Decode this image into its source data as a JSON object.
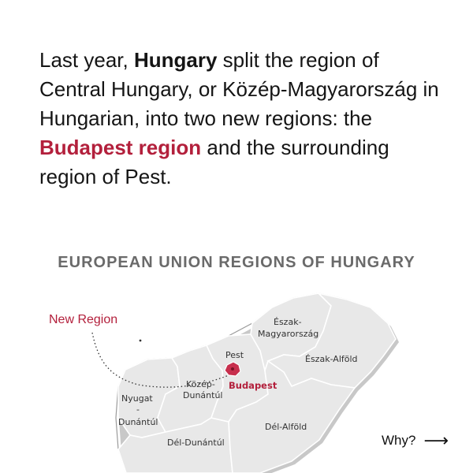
{
  "intro": {
    "part1": "Last year, ",
    "bold1": "Hungary",
    "part2": " split the region of Central Hungary, or Közép-Magyarország in Hungarian, into two new regions: the ",
    "accent": "Budapest region",
    "part3": " and the surrounding region of Pest."
  },
  "map": {
    "title": "EUROPEAN UNION REGIONS OF HUNGARY",
    "annotation": "New Region",
    "regions": {
      "eszak_magyarorszag_1": "Észak-",
      "eszak_magyarorszag_2": "Magyarország",
      "eszak_alfold": "Észak-Alföld",
      "pest": "Pest",
      "budapest": "Budapest",
      "kozep_dunantul_1": "Közép-",
      "kozep_dunantul_2": "Dunántúl",
      "nyugat_dunantul_1": "Nyugat",
      "nyugat_dunantul_2": "-",
      "nyugat_dunantul_3": "Dunántúl",
      "del_alfold": "Dél-Alföld",
      "del_dunantul": "Dél-Dunántúl"
    },
    "colors": {
      "accent": "#b3203c",
      "land": "#e8e8e8",
      "budapest": "#c72f4d"
    }
  },
  "nav": {
    "why_label": "Why?",
    "why_icon": "arrow-right-icon"
  }
}
